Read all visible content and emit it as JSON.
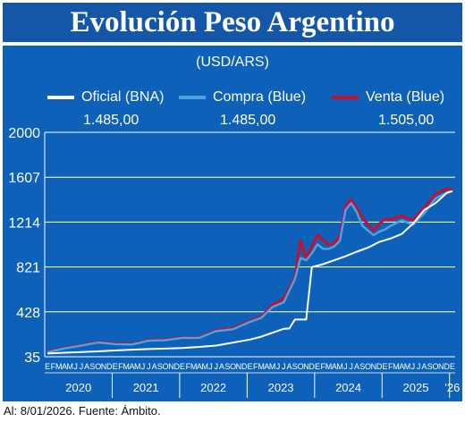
{
  "header": {
    "title": "Evolución Peso Argentino"
  },
  "chart_data": {
    "type": "line",
    "title": "Evolución Peso Argentino",
    "subtitle": "(USD/ARS)",
    "ylim": [
      35,
      2000
    ],
    "yticks": [
      35,
      428,
      821,
      1214,
      1607,
      2000
    ],
    "ytick_labels": [
      "35",
      "428",
      "821",
      "1214",
      "1607",
      "2000"
    ],
    "month_letters": [
      "E",
      "F",
      "M",
      "A",
      "M",
      "J",
      "J",
      "A",
      "S",
      "O",
      "N",
      "D"
    ],
    "years": [
      "2020",
      "2021",
      "2022",
      "2023",
      "2024",
      "2025",
      "'26"
    ],
    "x_start": "2020-01",
    "grid": true,
    "legend_position": "top",
    "series": [
      {
        "name": "Oficial (BNA)",
        "color": "#ffffff",
        "latest": "1.485,00",
        "x": [
          "2020-01",
          "2020-04",
          "2020-07",
          "2020-10",
          "2021-01",
          "2021-04",
          "2021-07",
          "2021-10",
          "2022-01",
          "2022-04",
          "2022-07",
          "2022-10",
          "2023-01",
          "2023-03",
          "2023-05",
          "2023-07",
          "2023-08",
          "2023-09",
          "2023-11",
          "2023-12",
          "2024-02",
          "2024-04",
          "2024-06",
          "2024-08",
          "2024-10",
          "2024-12",
          "2025-02",
          "2025-04",
          "2025-06",
          "2025-08",
          "2025-10",
          "2025-12",
          "2026-01"
        ],
        "values": [
          63,
          70,
          76,
          82,
          90,
          97,
          102,
          106,
          111,
          121,
          133,
          159,
          185,
          210,
          245,
          279,
          282,
          361,
          361,
          820,
          845,
          880,
          915,
          955,
          990,
          1040,
          1070,
          1110,
          1200,
          1320,
          1380,
          1470,
          1485
        ]
      },
      {
        "name": "Compra (Blue)",
        "color": "#4fa3e0",
        "latest": "1.485,00",
        "x": [
          "2020-01",
          "2020-04",
          "2020-07",
          "2020-10",
          "2021-01",
          "2021-04",
          "2021-07",
          "2021-10",
          "2022-01",
          "2022-04",
          "2022-07",
          "2022-10",
          "2023-01",
          "2023-03",
          "2023-05",
          "2023-07",
          "2023-09",
          "2023-10",
          "2023-11",
          "2023-12",
          "2024-01",
          "2024-02",
          "2024-03",
          "2024-04",
          "2024-05",
          "2024-06",
          "2024-07",
          "2024-08",
          "2024-09",
          "2024-10",
          "2024-11",
          "2024-12",
          "2025-01",
          "2025-02",
          "2025-04",
          "2025-06",
          "2025-08",
          "2025-10",
          "2025-12",
          "2026-01"
        ],
        "values": [
          74,
          108,
          132,
          160,
          145,
          142,
          175,
          180,
          200,
          200,
          260,
          275,
          340,
          375,
          470,
          510,
          715,
          900,
          880,
          940,
          1020,
          980,
          980,
          1000,
          1050,
          1320,
          1380,
          1300,
          1180,
          1140,
          1100,
          1130,
          1150,
          1180,
          1230,
          1190,
          1290,
          1420,
          1470,
          1485
        ]
      },
      {
        "name": "Venta (Blue)",
        "color": "#c8102e",
        "latest": "1.505,00",
        "x": [
          "2020-01",
          "2020-04",
          "2020-07",
          "2020-10",
          "2021-01",
          "2021-04",
          "2021-07",
          "2021-10",
          "2022-01",
          "2022-04",
          "2022-07",
          "2022-10",
          "2023-01",
          "2023-03",
          "2023-05",
          "2023-07",
          "2023-09",
          "2023-10",
          "2023-11",
          "2023-12",
          "2024-01",
          "2024-02",
          "2024-03",
          "2024-04",
          "2024-05",
          "2024-06",
          "2024-07",
          "2024-08",
          "2024-09",
          "2024-10",
          "2024-11",
          "2024-12",
          "2025-01",
          "2025-02",
          "2025-04",
          "2025-06",
          "2025-08",
          "2025-10",
          "2025-12",
          "2026-01"
        ],
        "values": [
          78,
          112,
          136,
          165,
          150,
          146,
          180,
          185,
          205,
          204,
          268,
          285,
          348,
          385,
          490,
          545,
          730,
          1050,
          900,
          1000,
          1100,
          1055,
          1015,
          1030,
          1090,
          1355,
          1410,
          1335,
          1250,
          1195,
          1140,
          1200,
          1240,
          1235,
          1270,
          1230,
          1340,
          1460,
          1505,
          1505
        ]
      }
    ]
  },
  "footnote": "Al: 8/01/2026. Fuente: Ámbito."
}
